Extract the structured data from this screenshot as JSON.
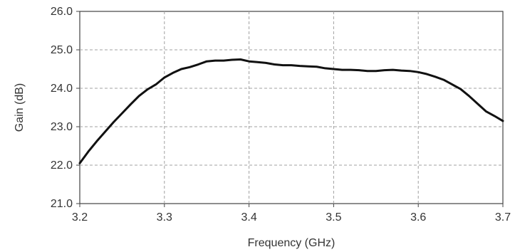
{
  "chart_data": {
    "type": "line",
    "xlabel": "Frequency (GHz)",
    "ylabel": "Gain (dB)",
    "xlim": [
      3.2,
      3.7
    ],
    "ylim": [
      21.0,
      26.0
    ],
    "x_ticks": [
      "3.2",
      "3.3",
      "3.4",
      "3.5",
      "3.6",
      "3.7"
    ],
    "y_ticks": [
      "21.0",
      "22.0",
      "23.0",
      "24.0",
      "25.0",
      "26.0"
    ],
    "grid": true,
    "series": [
      {
        "color": "#111111",
        "x": [
          3.2,
          3.21,
          3.22,
          3.23,
          3.24,
          3.25,
          3.26,
          3.27,
          3.28,
          3.29,
          3.3,
          3.31,
          3.32,
          3.33,
          3.34,
          3.35,
          3.36,
          3.37,
          3.38,
          3.39,
          3.4,
          3.41,
          3.42,
          3.43,
          3.44,
          3.45,
          3.46,
          3.47,
          3.48,
          3.49,
          3.5,
          3.51,
          3.52,
          3.53,
          3.54,
          3.55,
          3.56,
          3.57,
          3.58,
          3.59,
          3.6,
          3.61,
          3.62,
          3.63,
          3.64,
          3.65,
          3.66,
          3.67,
          3.68,
          3.69,
          3.7
        ],
        "y": [
          22.05,
          22.35,
          22.62,
          22.87,
          23.12,
          23.35,
          23.58,
          23.8,
          23.97,
          24.1,
          24.28,
          24.4,
          24.5,
          24.55,
          24.62,
          24.7,
          24.72,
          24.72,
          24.74,
          24.75,
          24.7,
          24.68,
          24.66,
          24.62,
          24.6,
          24.6,
          24.58,
          24.57,
          24.56,
          24.52,
          24.5,
          24.48,
          24.48,
          24.47,
          24.45,
          24.45,
          24.47,
          24.48,
          24.46,
          24.45,
          24.42,
          24.37,
          24.3,
          24.22,
          24.1,
          23.98,
          23.8,
          23.6,
          23.4,
          23.28,
          23.15
        ]
      }
    ]
  }
}
